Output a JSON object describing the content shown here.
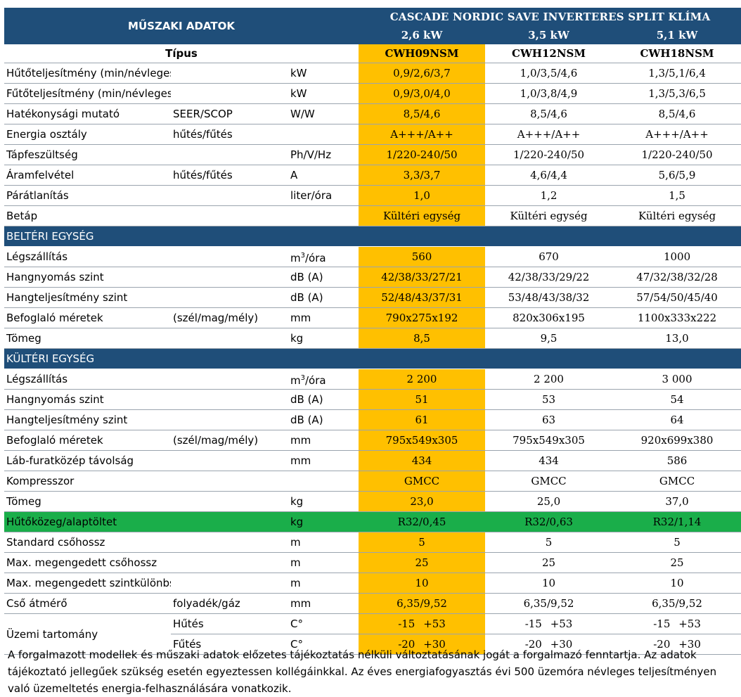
{
  "header": {
    "main_title": "MŰSZAKI ADATOK",
    "product_title": "CASCADE NORDIC SAVE INVERTERES SPLIT KLÍMA",
    "capacities": [
      "2,6 kW",
      "3,5 kW",
      "5,1 kW"
    ],
    "type_label": "Típus",
    "models": [
      "CWH09NSM",
      "CWH12NSM",
      "CWH18NSM"
    ]
  },
  "general": [
    {
      "label": "Hűtőteljesítmény (min/névleges/max)",
      "sub": "",
      "unit": "kW",
      "values": [
        "0,9/2,6/3,7",
        "1,0/3,5/4,6",
        "1,3/5,1/6,4"
      ]
    },
    {
      "label": "Fűtőteljesítmény (min/névleges/max)",
      "sub": "",
      "unit": "kW",
      "values": [
        "0,9/3,0/4,0",
        "1,0/3,8/4,9",
        "1,3/5,3/6,5"
      ]
    },
    {
      "label": "Hatékonysági mutató",
      "sub": "SEER/SCOP",
      "unit": "W/W",
      "values": [
        "8,5/4,6",
        "8,5/4,6",
        "8,5/4,6"
      ]
    },
    {
      "label": "Energia osztály",
      "sub": "hűtés/fűtés",
      "unit": "",
      "values": [
        "A+++/A++",
        "A+++/A++",
        "A+++/A++"
      ]
    },
    {
      "label": "Tápfeszültség",
      "sub": "",
      "unit": "Ph/V/Hz",
      "values": [
        "1/220-240/50",
        "1/220-240/50",
        "1/220-240/50"
      ]
    },
    {
      "label": "Áramfelvétel",
      "sub": "hűtés/fűtés",
      "unit": "A",
      "values": [
        "3,3/3,7",
        "4,6/4,4",
        "5,6/5,9"
      ]
    },
    {
      "label": "Párátlanítás",
      "sub": "",
      "unit": "liter/óra",
      "values": [
        "1,0",
        "1,2",
        "1,5"
      ]
    },
    {
      "label": "Betáp",
      "sub": "",
      "unit": "",
      "values": [
        "Kültéri egység",
        "Kültéri egység",
        "Kültéri egység"
      ]
    }
  ],
  "indoor": {
    "title": "BELTÉRI EGYSÉG",
    "rows": [
      {
        "label": "Légszállítás",
        "sub": "",
        "unit": "m",
        "unit_sup": "3",
        "unit_tail": "/óra",
        "values": [
          "560",
          "670",
          "1000"
        ]
      },
      {
        "label": "Hangnyomás szint",
        "sub": "",
        "unit": "dB (A)",
        "values": [
          "42/38/33/27/21",
          "42/38/33/29/22",
          "47/32/38/32/28"
        ]
      },
      {
        "label": "Hangteljesítmény szint",
        "sub": "",
        "unit": "dB (A)",
        "values": [
          "52/48/43/37/31",
          "53/48/43/38/32",
          "57/54/50/45/40"
        ]
      },
      {
        "label": "Befoglaló méretek",
        "sub": "(szél/mag/mély)",
        "unit": "mm",
        "values": [
          "790x275x192",
          "820x306x195",
          "1100x333x222"
        ]
      },
      {
        "label": "Tömeg",
        "sub": "",
        "unit": "kg",
        "values": [
          "8,5",
          "9,5",
          "13,0"
        ]
      }
    ]
  },
  "outdoor": {
    "title": "KÜLTÉRI EGYSÉG",
    "rows": [
      {
        "label": "Légszállítás",
        "sub": "",
        "unit": "m",
        "unit_sup": "3",
        "unit_tail": "/óra",
        "values": [
          "2 200",
          "2 200",
          "3 000"
        ]
      },
      {
        "label": "Hangnyomás szint",
        "sub": "",
        "unit": "dB (A)",
        "values": [
          "51",
          "53",
          "54"
        ]
      },
      {
        "label": "Hangteljesítmény szint",
        "sub": "",
        "unit": "dB (A)",
        "values": [
          "61",
          "63",
          "64"
        ]
      },
      {
        "label": "Befoglaló méretek",
        "sub": "(szél/mag/mély)",
        "unit": "mm",
        "values": [
          "795x549x305",
          "795x549x305",
          "920x699x380"
        ]
      },
      {
        "label": "Láb-furatközép távolság",
        "sub": "",
        "unit": "mm",
        "values": [
          "434",
          "434",
          "586"
        ]
      },
      {
        "label": "Kompresszor",
        "sub": "",
        "unit": "",
        "values": [
          "GMCC",
          "GMCC",
          "GMCC"
        ]
      },
      {
        "label": "Tömeg",
        "sub": "",
        "unit": "kg",
        "values": [
          "23,0",
          "25,0",
          "37,0"
        ]
      }
    ]
  },
  "refrigerant": {
    "label": "Hűtőközeg/alaptöltet",
    "unit": "kg",
    "values": [
      "R32/0,45",
      "R32/0,63",
      "R32/1,14"
    ]
  },
  "piping": [
    {
      "label": "Standard csőhossz",
      "sub": "",
      "unit": "m",
      "values": [
        "5",
        "5",
        "5"
      ]
    },
    {
      "label": "Max. megengedett csőhossz",
      "sub": "",
      "unit": "m",
      "values": [
        "25",
        "25",
        "25"
      ]
    },
    {
      "label": "Max. megengedett szintkülönbség",
      "sub": "",
      "unit": "m",
      "values": [
        "10",
        "10",
        "10"
      ]
    },
    {
      "label": "Cső átmérő",
      "sub": "folyadék/gáz",
      "unit": "mm",
      "values": [
        "6,35/9,52",
        "6,35/9,52",
        "6,35/9,52"
      ]
    }
  ],
  "operating": {
    "label": "Üzemi tartomány",
    "rows": [
      {
        "sub": "Hűtés",
        "unit": "C°",
        "values": [
          [
            "-15",
            "+53"
          ],
          [
            "-15",
            "+53"
          ],
          [
            "-15",
            "+53"
          ]
        ]
      },
      {
        "sub": "Fűtés",
        "unit": "C°",
        "values": [
          [
            "-20",
            "+30"
          ],
          [
            "-20",
            "+30"
          ],
          [
            "-20",
            "+30"
          ]
        ]
      }
    ]
  },
  "footnote": "A forgalmazott modellek és műszaki adatok előzetes tájékoztatás nélküli változtatásának jogát a forgalmazó fenntartja. Az adatok tájékoztató jellegűek szükség esetén egyeztessen kollégáinkkal. Az éves energiafogyasztás  évi 500 üzemóra névleges teljesítményen való üzemeltetés energia-felhasználására vonatkozik.",
  "colors": {
    "header_bg": "#1f4e79",
    "highlight": "#ffc000",
    "refrigerant_row": "#1aae4a"
  }
}
